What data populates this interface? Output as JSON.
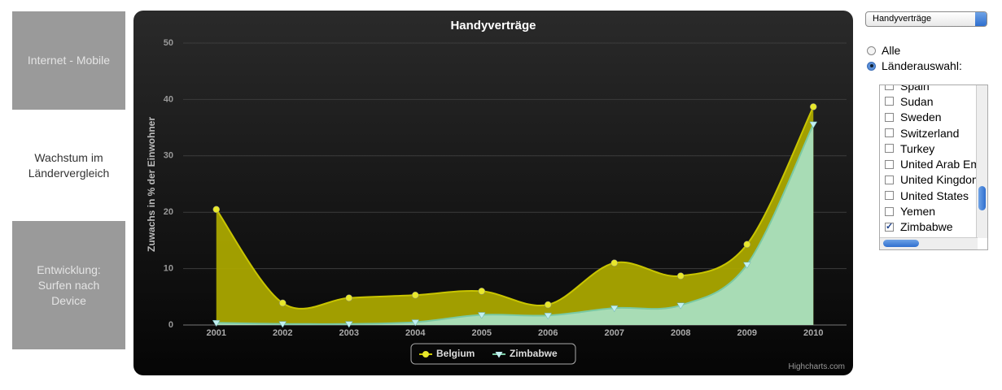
{
  "nav": [
    {
      "label": "Internet - Mobile",
      "active": false
    },
    {
      "label": "Wachstum im Ländervergleich",
      "active": true
    },
    {
      "label": "Entwicklung: Surfen nach Device",
      "active": false
    }
  ],
  "chart_data": {
    "type": "area",
    "title": "Handyverträge",
    "y_label": "Zuwachs in % der Einwohner",
    "categories": [
      "2001",
      "2002",
      "2003",
      "2004",
      "2005",
      "2006",
      "2007",
      "2008",
      "2009",
      "2010"
    ],
    "series": [
      {
        "name": "Belgium",
        "color": "#aaa600",
        "line_color": "#c9c500",
        "marker_color": "#e8e82c",
        "symbol": "circle",
        "values": [
          20.5,
          3.9,
          4.8,
          5.3,
          6.0,
          3.6,
          11.0,
          8.7,
          14.3,
          38.7
        ]
      },
      {
        "name": "Zimbabwe",
        "color": "#a9dfbf",
        "line_color": "#7ac9a2",
        "marker_color": "#c2f0f2",
        "symbol": "triangle-down",
        "values": [
          0.4,
          0.2,
          0.2,
          0.5,
          1.8,
          1.7,
          3.0,
          3.5,
          10.7,
          35.6
        ]
      }
    ],
    "ylim": [
      0,
      50
    ],
    "yticks": [
      0,
      10,
      20,
      30,
      40,
      50
    ],
    "grid": true,
    "smooth": true,
    "legend": "bottom",
    "credits": "Highcharts.com"
  },
  "controls": {
    "select": "Handyverträge",
    "radios": [
      {
        "label": "Alle",
        "selected": false
      },
      {
        "label": "Länderauswahl:",
        "selected": true
      }
    ],
    "countries": [
      {
        "name": "Spain",
        "checked": false
      },
      {
        "name": "Sudan",
        "checked": false
      },
      {
        "name": "Sweden",
        "checked": false
      },
      {
        "name": "Switzerland",
        "checked": false
      },
      {
        "name": "Turkey",
        "checked": false
      },
      {
        "name": "United Arab Emirates",
        "checked": false
      },
      {
        "name": "United Kingdom",
        "checked": false
      },
      {
        "name": "United States",
        "checked": false
      },
      {
        "name": "Yemen",
        "checked": false
      },
      {
        "name": "Zimbabwe",
        "checked": true
      }
    ]
  }
}
